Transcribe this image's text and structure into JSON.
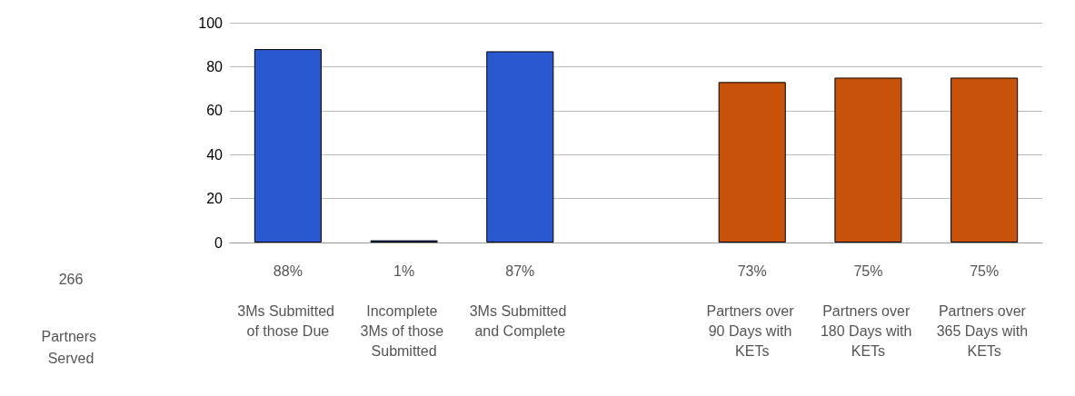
{
  "chart_data": {
    "type": "bar",
    "categories": [
      "3Ms Submitted of those Due",
      "Incomplete 3Ms of those Submitted",
      "3Ms Submitted and Complete",
      null,
      "Partners over 90 Days with KETs",
      "Partners over 180 Days with KETs",
      "Partners over 365 Days with KETs"
    ],
    "values": [
      88,
      1,
      87,
      null,
      73,
      75,
      75
    ],
    "value_labels": [
      "88%",
      "1%",
      "87%",
      null,
      "73%",
      "75%",
      "75%"
    ],
    "colors": [
      "#2a58d0",
      "#2a58d0",
      "#2a58d0",
      null,
      "#c8520a",
      "#c8520a",
      "#c8520a"
    ],
    "ylim": [
      0,
      100
    ],
    "yticks": [
      0,
      20,
      40,
      60,
      80,
      100
    ],
    "grid": "y",
    "annotations": [
      "266",
      "Partners Served"
    ]
  }
}
